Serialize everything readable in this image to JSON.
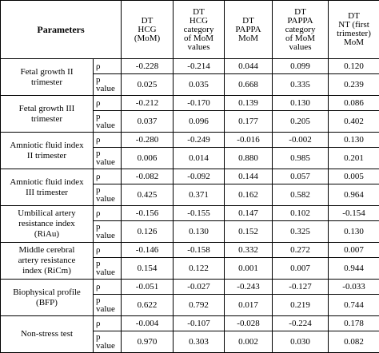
{
  "header": {
    "parameters": "Parameters",
    "columns": [
      [
        "DT",
        "HCG",
        "(MoM)"
      ],
      [
        "DT",
        "HCG",
        "category",
        "of MoM",
        "values"
      ],
      [
        "DT",
        "PAPPA",
        "MoM"
      ],
      [
        "DT",
        "PAPPA",
        "category",
        "of MoM",
        "values"
      ],
      [
        "DT",
        "NT (first",
        "trimester)",
        "MoM"
      ]
    ]
  },
  "rows": [
    {
      "param": [
        "Fetal growth II",
        "trimester"
      ],
      "rho_label": "ρ",
      "p_label": [
        "p",
        "value"
      ],
      "rho": [
        "-0.228",
        "-0.214",
        "0.044",
        "0.099",
        "0.120"
      ],
      "p": [
        "0.025",
        "0.035",
        "0.668",
        "0.335",
        "0.239"
      ]
    },
    {
      "param": [
        "Fetal growth III",
        "trimester"
      ],
      "rho_label": "ρ",
      "p_label": [
        "p",
        "value"
      ],
      "rho": [
        "-0.212",
        "-0.170",
        "0.139",
        "0.130",
        "0.086"
      ],
      "p": [
        "0.037",
        "0.096",
        "0.177",
        "0.205",
        "0.402"
      ]
    },
    {
      "param": [
        "Amniotic fluid index",
        "II trimester"
      ],
      "rho_label": "ρ",
      "p_label": [
        "p",
        "value"
      ],
      "rho": [
        "-0.280",
        "-0.249",
        "-0.016",
        "-0.002",
        "0.130"
      ],
      "p": [
        "0.006",
        "0.014",
        "0.880",
        "0.985",
        "0.201"
      ]
    },
    {
      "param": [
        "Amniotic fluid index",
        "III trimester"
      ],
      "rho_label": "ρ",
      "p_label": [
        "p",
        "value"
      ],
      "rho": [
        "-0.082",
        "-0.092",
        "0.144",
        "0.057",
        "0.005"
      ],
      "p": [
        "0.425",
        "0.371",
        "0.162",
        "0.582",
        "0.964"
      ]
    },
    {
      "param": [
        "Umbilical artery",
        "resistance index",
        "(RiAu)"
      ],
      "rho_label": "ρ",
      "p_label": [
        "p",
        "value"
      ],
      "rho": [
        "-0.156",
        "-0.155",
        "0.147",
        "0.102",
        "-0.154"
      ],
      "p": [
        "0.126",
        "0.130",
        "0.152",
        "0.325",
        "0.130"
      ]
    },
    {
      "param": [
        "Middle cerebral",
        "artery resistance",
        "index (RiCm)"
      ],
      "rho_label": "ρ",
      "p_label": [
        "p",
        "value"
      ],
      "rho": [
        "-0.146",
        "-0.158",
        "0.332",
        "0.272",
        "0.007"
      ],
      "p": [
        "0.154",
        "0.122",
        "0.001",
        "0.007",
        "0.944"
      ]
    },
    {
      "param": [
        "Biophysical profile",
        "(BFP)"
      ],
      "rho_label": "ρ",
      "p_label": [
        "p",
        "value"
      ],
      "rho": [
        "-0.051",
        "-0.027",
        "-0.243",
        "-0.127",
        "-0.033"
      ],
      "p": [
        "0.622",
        "0.792",
        "0.017",
        "0.219",
        "0.744"
      ]
    },
    {
      "param": [
        "Non-stress test"
      ],
      "rho_label": "ρ",
      "p_label": [
        "p",
        "value"
      ],
      "rho": [
        "-0.004",
        "-0.107",
        "-0.028",
        "-0.224",
        "0.178"
      ],
      "p": [
        "0.970",
        "0.303",
        "0.002",
        "0.030",
        "0.082"
      ]
    }
  ]
}
